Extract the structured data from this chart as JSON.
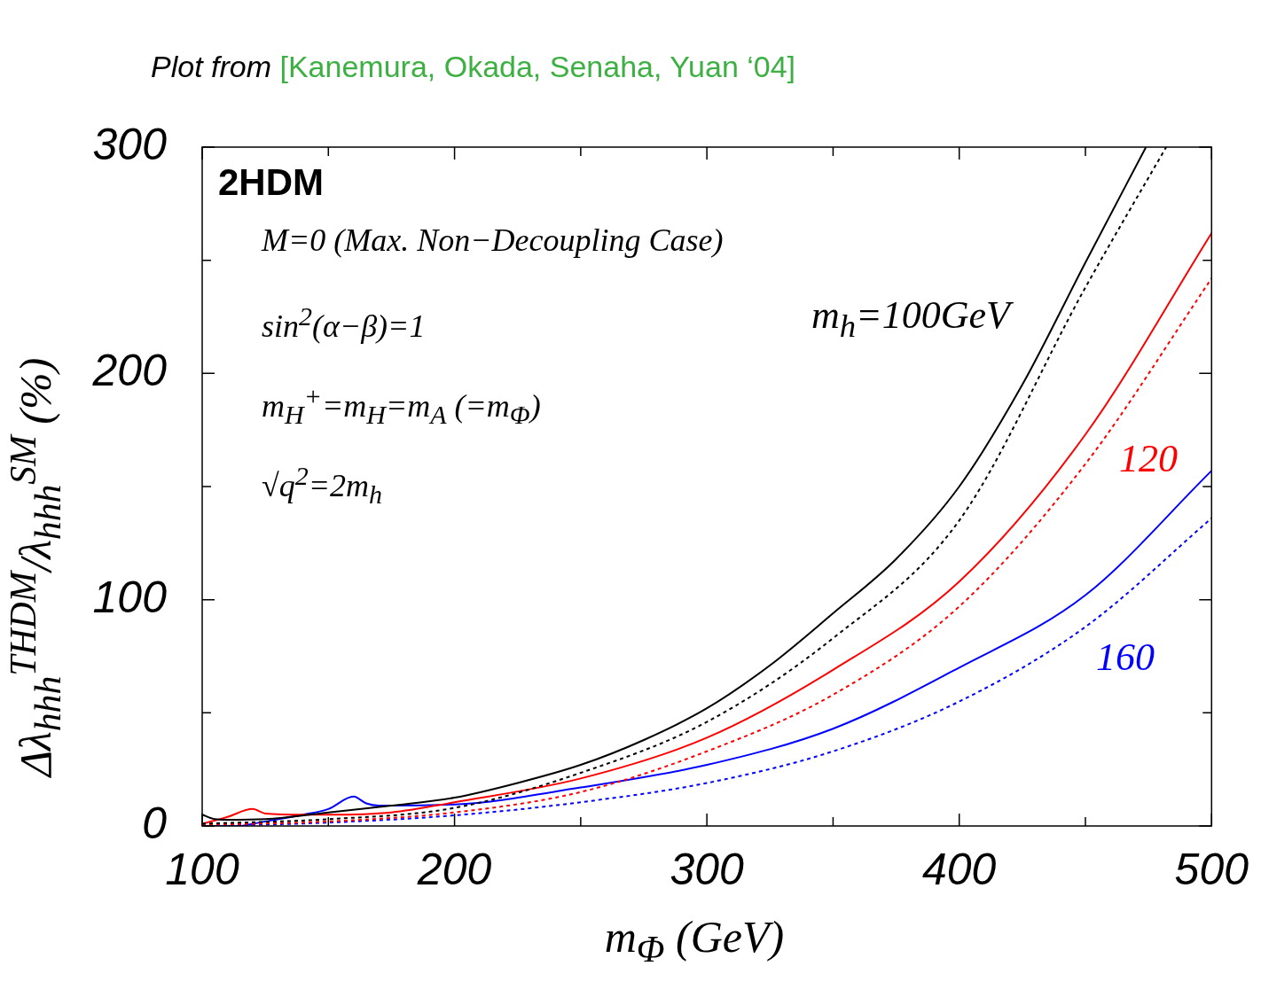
{
  "chart_data": {
    "type": "line",
    "title": "Plot from",
    "subtitle": "[Kanemura, Okada, Senaha, Yuan ‘04]",
    "xlabel": "m$_{Φ}$ (GeV)",
    "ylabel": "Δλ$_{hhh}$$^{THDM}$/λ$_{hhh}$$^{SM}$ (%)",
    "xlim": [
      100,
      500
    ],
    "xticks": [
      100,
      {
        "value": 150,
        "label": null
      },
      200,
      {
        "value": 250,
        "label": null
      },
      300,
      {
        "value": 350,
        "label": null
      },
      400,
      {
        "value": 450,
        "label": null
      },
      500
    ],
    "ylim": [
      0,
      300
    ],
    "yticks": [
      0,
      {
        "value": 50,
        "label": null
      },
      100,
      {
        "value": 150,
        "label": null
      },
      200,
      {
        "value": 250,
        "label": null
      },
      300
    ],
    "marker": "none",
    "series": [
      {
        "name": "m$_{h}$=100GeV",
        "color": "#000000",
        "line_style": "solid",
        "x": [
          100,
          105,
          110,
          125,
          150,
          175,
          200,
          225,
          250,
          275,
          300,
          325,
          350,
          375,
          400,
          425,
          450,
          474
        ],
        "values": [
          5,
          3,
          2.7,
          3,
          6,
          9,
          12.5,
          19,
          27,
          38,
          52,
          71,
          94,
          118,
          150,
          195,
          249,
          300
        ]
      },
      {
        "color": "#000000",
        "line_style": "dotted",
        "x": [
          100,
          150,
          200,
          250,
          300,
          350,
          400,
          450,
          482
        ],
        "values": [
          1,
          3,
          8,
          23.5,
          46,
          83,
          135,
          238,
          300
        ]
      },
      {
        "name": "120",
        "color": "#ff0000",
        "line_style": "solid",
        "x": [
          100,
          110,
          120,
          125,
          140,
          150,
          175,
          200,
          250,
          300,
          350,
          400,
          450,
          500
        ],
        "values": [
          1,
          4,
          7.5,
          5.5,
          5,
          5,
          6,
          10.5,
          21,
          39,
          69,
          108,
          173,
          262
        ]
      },
      {
        "color": "#ff0000",
        "line_style": "dotted",
        "x": [
          100,
          150,
          200,
          250,
          300,
          350,
          400,
          450,
          500
        ],
        "values": [
          0.5,
          2,
          6,
          15,
          33,
          58,
          97,
          160,
          242
        ]
      },
      {
        "name": "160",
        "color": "#0000ff",
        "line_style": "solid",
        "x": [
          100,
          115,
          120,
          140,
          150,
          160,
          165,
          170,
          200,
          250,
          300,
          350,
          400,
          450,
          500
        ],
        "values": [
          0,
          0,
          1,
          5,
          7.5,
          13,
          10,
          9,
          9.5,
          17,
          27,
          43,
          70,
          102,
          157
        ]
      },
      {
        "color": "#0000ff",
        "line_style": "dotted",
        "x": [
          100,
          150,
          200,
          250,
          300,
          350,
          400,
          450,
          500
        ],
        "values": [
          0,
          1.5,
          4.7,
          10.5,
          19,
          33,
          55,
          88,
          136
        ]
      }
    ],
    "annotations": [
      "2HDM",
      "M=0 (Max. Non−Decoupling Case)",
      "sin$^{2}$(α−β)=1",
      "m$_{H}$$^{+}$=m$_{H}$=m$_{A}$ (=m$_{Φ}$)",
      "√q$^{2}$=2m$_{h}$"
    ]
  }
}
